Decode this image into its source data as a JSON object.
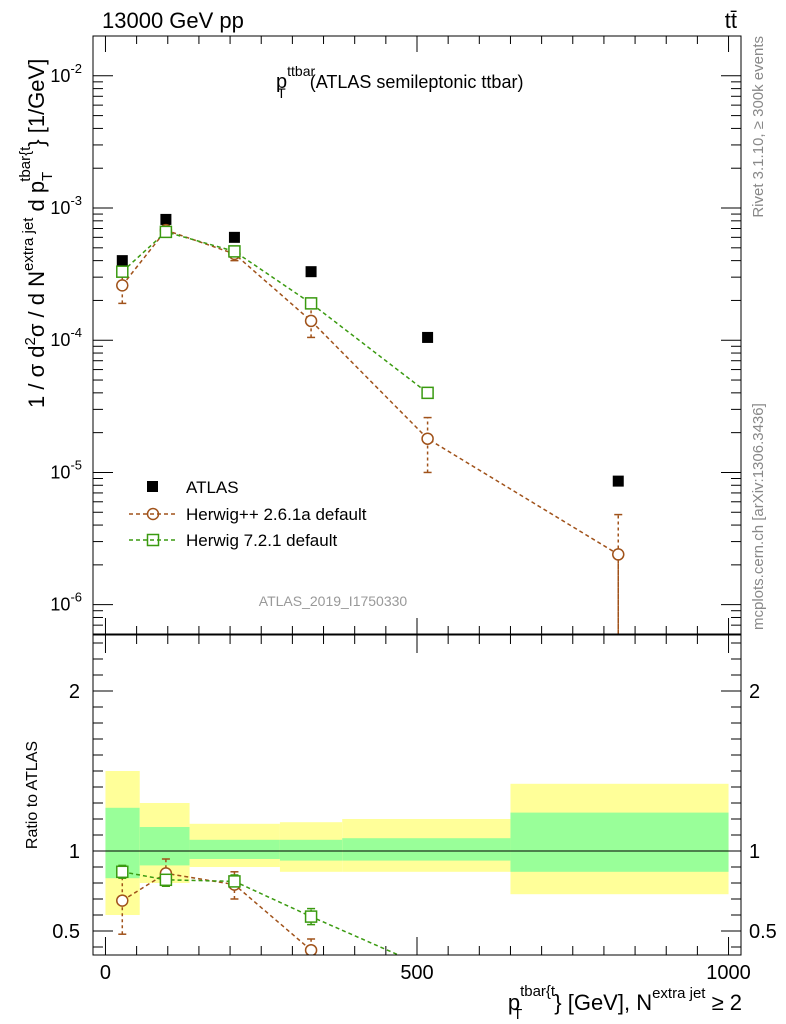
{
  "header": {
    "energy_label": "13000 GeV pp",
    "process_label": "tt̄"
  },
  "side_labels": {
    "rivet": "Rivet 3.1.10, ≥ 300k events",
    "mcplots": "mcplots.cern.ch [arXiv:1306.3436]"
  },
  "colors": {
    "data": "#000000",
    "herwigpp": "#a0521a",
    "herwig7": "#3a9a10",
    "band_outer": "#ffff99",
    "band_inner": "#99ff99"
  },
  "chart_data": [
    {
      "type": "scatter",
      "panel": "main",
      "title_main": "p",
      "title_sup": "ttbar",
      "title_sub": "T",
      "title_rest": "(ATLAS semileptonic ttbar)",
      "ylabel": "1 / σ d²σ / d N^{extra jet} d p_T^{tbar{t}} [1/GeV]",
      "ylabel_parts": {
        "a": "1 / σ d",
        "sup1": "2",
        "b": "σ / d N",
        "sup2": "extra jet",
        "c": " d p",
        "sub3": "T",
        "sup3": "tbar{t",
        "d": "} [1/GeV]"
      },
      "yscale": "log",
      "ylim": [
        6e-07,
        0.02
      ],
      "yticks": [
        {
          "value": 1e-06,
          "base": "10",
          "exp": "-6"
        },
        {
          "value": 1e-05,
          "base": "10",
          "exp": "-5"
        },
        {
          "value": 0.0001,
          "base": "10",
          "exp": "-4"
        },
        {
          "value": 0.001,
          "base": "10",
          "exp": "-3"
        },
        {
          "value": 0.01,
          "base": "10",
          "exp": "-2"
        }
      ],
      "xlim": [
        -20,
        1020
      ],
      "watermark": "ATLAS_2019_I1750330",
      "legend_position": "lower-left",
      "series": [
        {
          "name": "ATLAS",
          "key": "data",
          "x": [
            27,
            97,
            207,
            330,
            517,
            823
          ],
          "y": [
            0.0004,
            0.00082,
            0.0006,
            0.00033,
            0.000105,
            8.6e-06
          ]
        },
        {
          "name": "Herwig++ 2.6.1a default",
          "key": "herwigpp",
          "x": [
            27,
            97,
            207,
            330,
            517,
            823
          ],
          "y": [
            0.00026,
            0.00068,
            0.00045,
            0.00014,
            1.8e-05,
            2.4e-06
          ],
          "yerr_lo": [
            0.00019,
            0.00062,
            0.0004,
            0.000105,
            1e-05,
            5e-07
          ],
          "yerr_hi": [
            0.00034,
            0.00075,
            0.00051,
            0.000175,
            2.6e-05,
            4.8e-06
          ]
        },
        {
          "name": "Herwig 7.2.1 default",
          "key": "herwig7",
          "x": [
            27,
            97,
            207,
            330,
            517
          ],
          "y": [
            0.00033,
            0.00066,
            0.00047,
            0.00019,
            4e-05
          ],
          "yerr_lo": [
            0.00031,
            0.00063,
            0.00045,
            0.00018,
            3.7e-05
          ],
          "yerr_hi": [
            0.00035,
            0.00069,
            0.00049,
            0.0002,
            4.3e-05
          ]
        }
      ]
    },
    {
      "type": "scatter",
      "panel": "ratio",
      "ylabel": "Ratio to ATLAS",
      "ylim": [
        0.35,
        2.35
      ],
      "yticks": [
        0.5,
        1,
        2
      ],
      "ytick_labels": [
        "0.5",
        "1",
        "2"
      ],
      "xlim": [
        -20,
        1020
      ],
      "xticks": [
        0,
        500,
        1000
      ],
      "xtick_labels": [
        "0",
        "500",
        "1000"
      ],
      "xlabel_parts": {
        "p": "p",
        "sup1": "tbar{t",
        "sub1": "T",
        "mid": "} [GeV], N",
        "sup2": "extra jet",
        "end": " ≥ 2"
      },
      "bands": [
        {
          "x0": 0,
          "x1": 55,
          "outer": [
            0.6,
            1.5
          ],
          "inner": [
            0.83,
            1.27
          ]
        },
        {
          "x0": 55,
          "x1": 135,
          "outer": [
            0.8,
            1.3
          ],
          "inner": [
            0.91,
            1.15
          ]
        },
        {
          "x0": 135,
          "x1": 280,
          "outer": [
            0.9,
            1.17
          ],
          "inner": [
            0.95,
            1.07
          ]
        },
        {
          "x0": 280,
          "x1": 380,
          "outer": [
            0.87,
            1.18
          ],
          "inner": [
            0.94,
            1.07
          ]
        },
        {
          "x0": 380,
          "x1": 650,
          "outer": [
            0.87,
            1.2
          ],
          "inner": [
            0.94,
            1.08
          ]
        },
        {
          "x0": 650,
          "x1": 1000,
          "outer": [
            0.73,
            1.42
          ],
          "inner": [
            0.87,
            1.24
          ]
        }
      ],
      "series": [
        {
          "name": "Herwig++ 2.6.1a default",
          "key": "herwigpp",
          "x": [
            27,
            97,
            207,
            330
          ],
          "y": [
            0.69,
            0.86,
            0.79,
            0.38
          ],
          "yerr_lo": [
            0.48,
            0.78,
            0.7,
            0.32
          ],
          "yerr_hi": [
            0.88,
            0.95,
            0.87,
            0.45
          ],
          "line_end": {
            "x": 345,
            "y": 0.3
          }
        },
        {
          "name": "Herwig 7.2.1 default",
          "key": "herwig7",
          "x": [
            27,
            97,
            207,
            330
          ],
          "y": [
            0.87,
            0.82,
            0.81,
            0.59
          ],
          "yerr_lo": [
            0.83,
            0.78,
            0.77,
            0.54
          ],
          "yerr_hi": [
            0.91,
            0.86,
            0.85,
            0.64
          ],
          "line_end": {
            "x": 482,
            "y": 0.33
          }
        }
      ]
    }
  ]
}
